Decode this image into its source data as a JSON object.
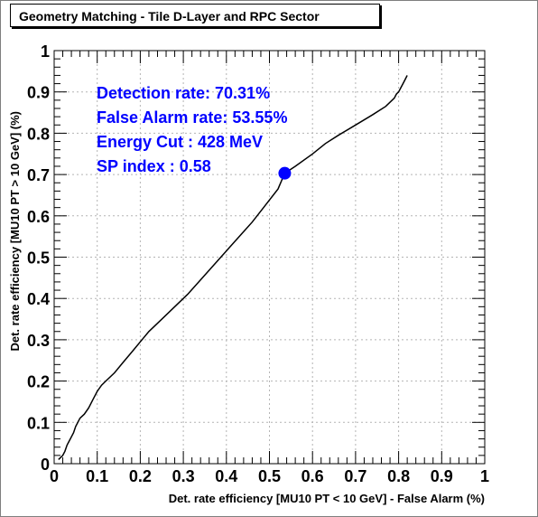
{
  "chart_data": {
    "type": "line",
    "title": "Geometry Matching - Tile D-Layer and RPC Sector",
    "xlabel": "Det. rate efficiency [MU10 PT < 10 GeV] - False Alarm (%)",
    "ylabel": "Det. rate efficiency [MU10 PT > 10 GeV] (%)",
    "xlim": [
      0,
      1
    ],
    "ylim": [
      0,
      1
    ],
    "xticks": [
      "0",
      "0.1",
      "0.2",
      "0.3",
      "0.4",
      "0.5",
      "0.6",
      "0.7",
      "0.8",
      "0.9",
      "1"
    ],
    "yticks": [
      "0",
      "0.1",
      "0.2",
      "0.3",
      "0.4",
      "0.5",
      "0.6",
      "0.7",
      "0.8",
      "0.9",
      "1"
    ],
    "grid": true,
    "series": [
      {
        "x": [
          0.01,
          0.02,
          0.025,
          0.03,
          0.035,
          0.04,
          0.045,
          0.05,
          0.055,
          0.06,
          0.07,
          0.08,
          0.09,
          0.1,
          0.11,
          0.12,
          0.14,
          0.16,
          0.18,
          0.2,
          0.22,
          0.25,
          0.28,
          0.31,
          0.34,
          0.37,
          0.4,
          0.43,
          0.46,
          0.49,
          0.52,
          0.5355,
          0.56,
          0.6,
          0.63,
          0.66,
          0.7,
          0.74,
          0.77,
          0.78,
          0.79,
          0.795,
          0.8,
          0.805,
          0.81,
          0.815,
          0.82
        ],
        "y": [
          0.01,
          0.02,
          0.03,
          0.045,
          0.055,
          0.065,
          0.075,
          0.09,
          0.1,
          0.11,
          0.12,
          0.135,
          0.155,
          0.175,
          0.19,
          0.2,
          0.22,
          0.245,
          0.27,
          0.295,
          0.32,
          0.35,
          0.38,
          0.41,
          0.445,
          0.48,
          0.515,
          0.55,
          0.585,
          0.625,
          0.665,
          0.7031,
          0.72,
          0.75,
          0.775,
          0.795,
          0.82,
          0.845,
          0.865,
          0.875,
          0.885,
          0.895,
          0.9,
          0.91,
          0.92,
          0.93,
          0.94
        ]
      }
    ],
    "marker": {
      "x": 0.5355,
      "y": 0.7031,
      "color": "#0000ff"
    },
    "annotations": [
      "Detection rate: 70.31%",
      "False Alarm rate: 53.55%",
      "Energy Cut : 428 MeV",
      "SP index : 0.58"
    ],
    "colors": {
      "annotation": "#0000ff",
      "line": "#000000",
      "grid": "#b4b4b4"
    }
  }
}
